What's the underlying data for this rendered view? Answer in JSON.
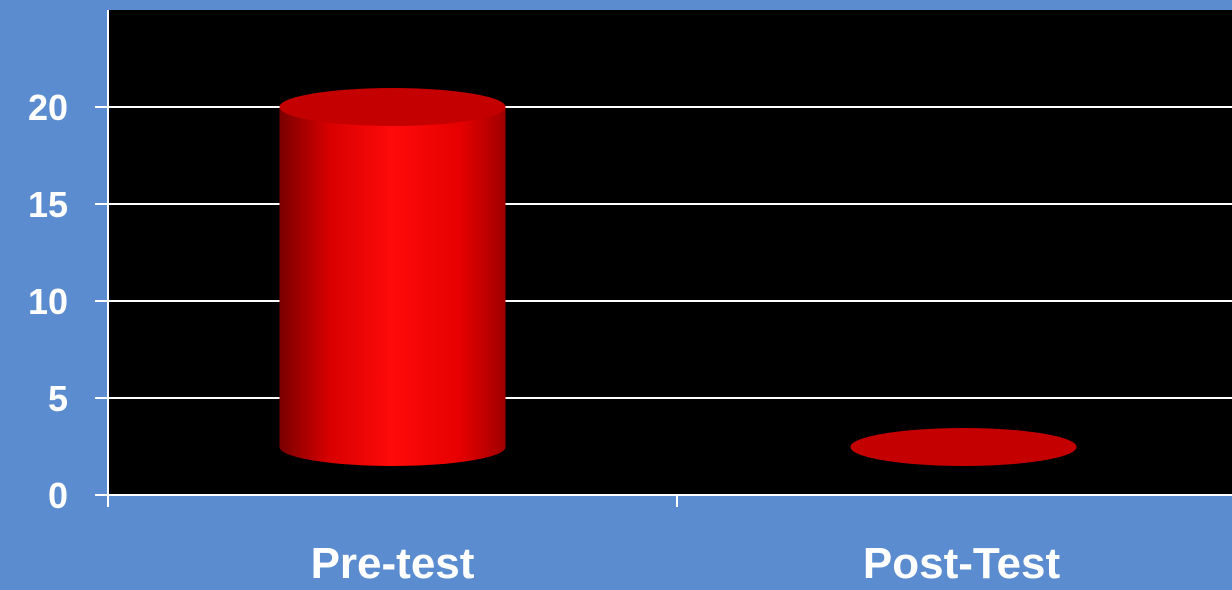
{
  "chart_data": {
    "type": "bar",
    "style": "3d-cylinder",
    "categories": [
      "Pre-test",
      "Post-Test"
    ],
    "values": [
      20,
      0
    ],
    "ylim": [
      0,
      20
    ],
    "yticks": [
      0,
      5,
      10,
      15,
      20
    ],
    "title": "",
    "xlabel": "",
    "ylabel": "",
    "grid": true,
    "colors": {
      "page_background": "#5b8ccf",
      "plot_background": "#000000",
      "bar": "#ff0000",
      "bar_top": "#c40000",
      "gridline": "#ffffff",
      "text": "#ffffff"
    }
  }
}
